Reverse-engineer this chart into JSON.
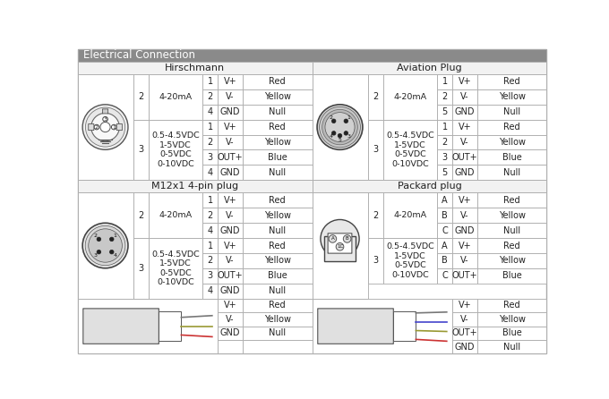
{
  "title": "Electrical Connection",
  "title_bg": "#8a8a8a",
  "hirschmann_rows": [
    [
      "2",
      "4-20mA",
      "1",
      "V+",
      "Red"
    ],
    [
      "",
      "",
      "2",
      "V-",
      "Yellow"
    ],
    [
      "",
      "",
      "4",
      "GND",
      "Null"
    ],
    [
      "3",
      "0.5-4.5VDC\n1-5VDC\n0-5VDC\n0-10VDC",
      "1",
      "V+",
      "Red"
    ],
    [
      "",
      "",
      "2",
      "V-",
      "Yellow"
    ],
    [
      "",
      "",
      "3",
      "OUT+",
      "Blue"
    ],
    [
      "",
      "",
      "4",
      "GND",
      "Null"
    ]
  ],
  "aviation_rows": [
    [
      "2",
      "4-20mA",
      "1",
      "V+",
      "Red"
    ],
    [
      "",
      "",
      "2",
      "V-",
      "Yellow"
    ],
    [
      "",
      "",
      "5",
      "GND",
      "Null"
    ],
    [
      "3",
      "0.5-4.5VDC\n1-5VDC\n0-5VDC\n0-10VDC",
      "1",
      "V+",
      "Red"
    ],
    [
      "",
      "",
      "2",
      "V-",
      "Yellow"
    ],
    [
      "",
      "",
      "3",
      "OUT+",
      "Blue"
    ],
    [
      "",
      "",
      "5",
      "GND",
      "Null"
    ]
  ],
  "m12_rows": [
    [
      "2",
      "4-20mA",
      "1",
      "V+",
      "Red"
    ],
    [
      "",
      "",
      "2",
      "V-",
      "Yellow"
    ],
    [
      "",
      "",
      "4",
      "GND",
      "Null"
    ],
    [
      "3",
      "0.5-4.5VDC\n1-5VDC\n0-5VDC\n0-10VDC",
      "1",
      "V+",
      "Red"
    ],
    [
      "",
      "",
      "2",
      "V-",
      "Yellow"
    ],
    [
      "",
      "",
      "3",
      "OUT+",
      "Blue"
    ],
    [
      "",
      "",
      "4",
      "GND",
      "Null"
    ]
  ],
  "packard_rows": [
    [
      "2",
      "4-20mA",
      "A",
      "V+",
      "Red"
    ],
    [
      "",
      "",
      "B",
      "V-",
      "Yellow"
    ],
    [
      "",
      "",
      "C",
      "GND",
      "Null"
    ],
    [
      "3",
      "0.5-4.5VDC\n1-5VDC\n0-5VDC\n0-10VDC",
      "A",
      "V+",
      "Red"
    ],
    [
      "",
      "",
      "B",
      "V-",
      "Yellow"
    ],
    [
      "",
      "",
      "C",
      "OUT+",
      "Blue"
    ]
  ],
  "left_cable_rows": [
    [
      "V+",
      "Red"
    ],
    [
      "V-",
      "Yellow"
    ],
    [
      "GND",
      "Null"
    ],
    [
      "",
      ""
    ]
  ],
  "right_cable_rows": [
    [
      "V+",
      "Red"
    ],
    [
      "V-",
      "Yellow"
    ],
    [
      "OUT+",
      "Blue"
    ],
    [
      "GND",
      "Null"
    ]
  ]
}
